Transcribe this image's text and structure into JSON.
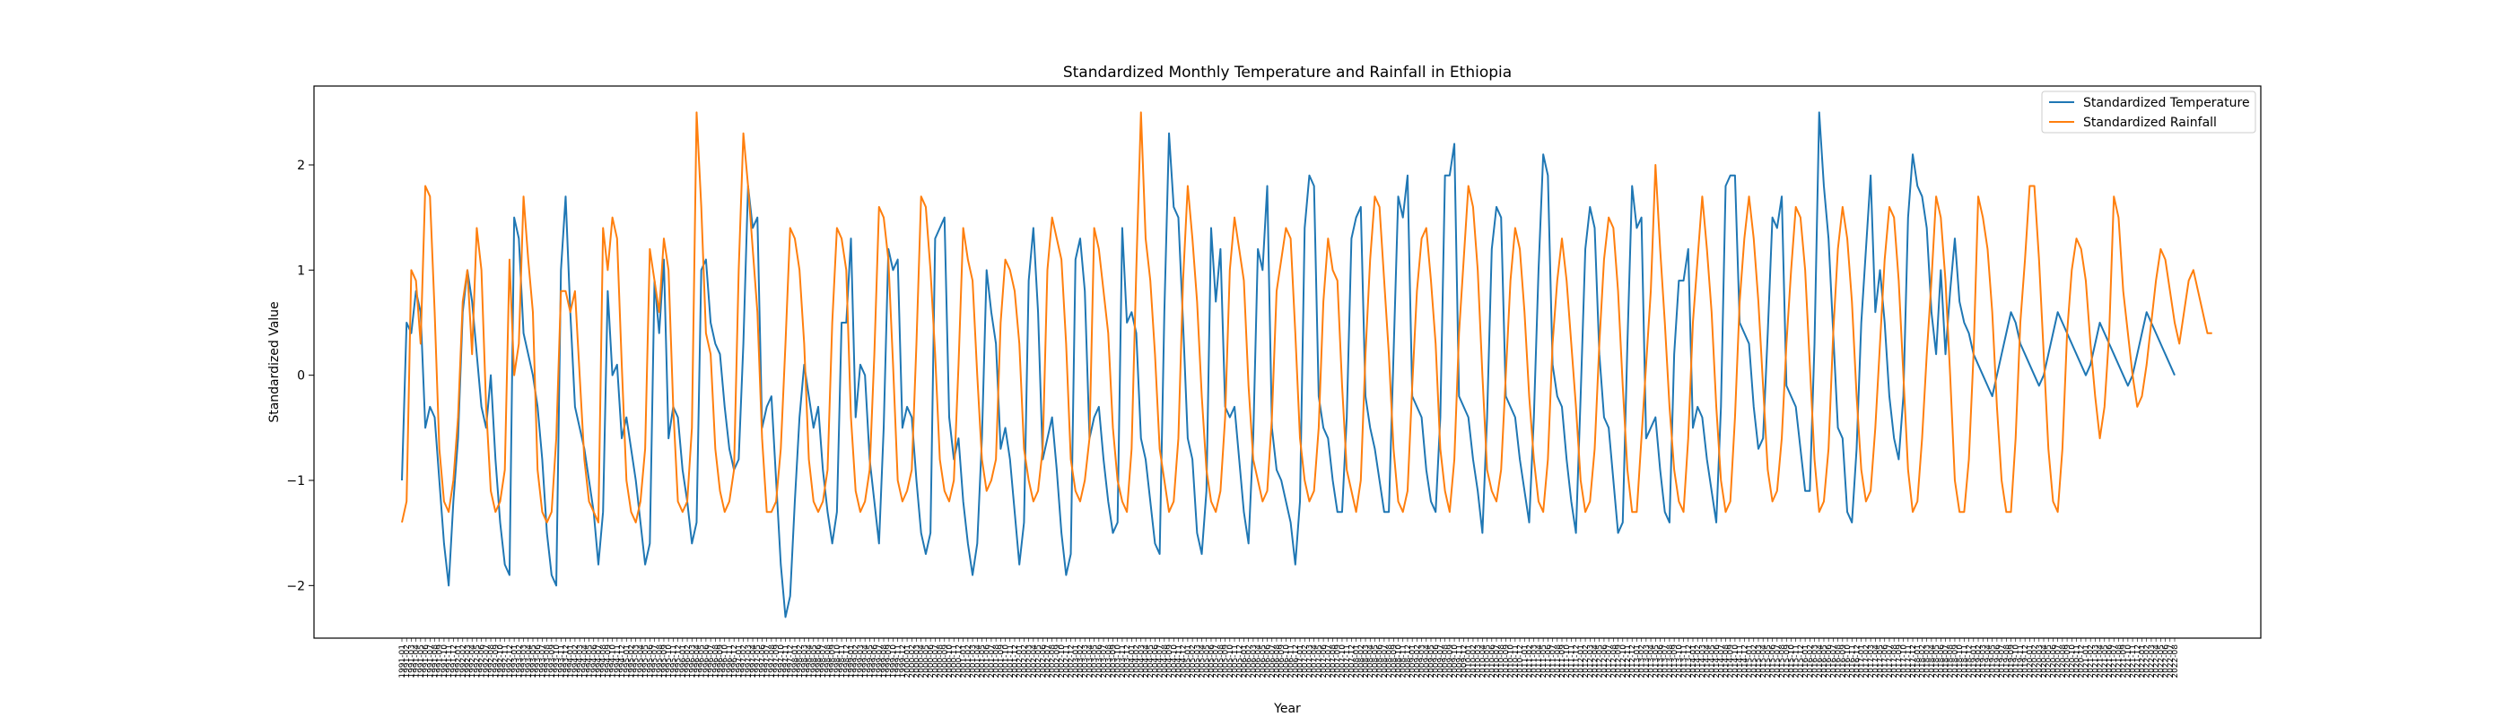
{
  "chart_data": {
    "type": "line",
    "title": "Standardized Monthly Temperature and Rainfall in Ethiopia",
    "xlabel": "Year",
    "ylabel": "Standardized Value",
    "ylim": [
      -2.5,
      2.75
    ],
    "yticks": [
      -2,
      -1,
      0,
      1,
      2
    ],
    "ytick_labels": [
      "−2",
      "−1",
      "0",
      "1",
      "2"
    ],
    "grid": false,
    "legend_position": "top-right",
    "x_start": "1991-01",
    "x_end": "2022-12",
    "n_months": 384,
    "series": [
      {
        "name": "Standardized Temperature",
        "color": "#1f77b4",
        "values": [
          -1.0,
          0.5,
          0.4,
          0.8,
          0.6,
          -0.5,
          -0.3,
          -0.4,
          -1.0,
          -1.6,
          -2.0,
          -1.2,
          -0.6,
          0.6,
          1.0,
          0.7,
          0.2,
          -0.3,
          -0.5,
          0.0,
          -0.8,
          -1.4,
          -1.8,
          -1.9,
          1.5,
          1.3,
          0.4,
          0.2,
          0.0,
          -0.3,
          -0.8,
          -1.5,
          -1.9,
          -2.0,
          1.0,
          1.7,
          0.6,
          -0.3,
          -0.5,
          -0.7,
          -1.0,
          -1.3,
          -1.8,
          -1.3,
          0.8,
          0.0,
          0.1,
          -0.6,
          -0.4,
          -0.7,
          -1.0,
          -1.4,
          -1.8,
          -1.6,
          0.9,
          0.4,
          1.1,
          -0.6,
          -0.3,
          -0.4,
          -0.9,
          -1.2,
          -1.6,
          -1.4,
          1.0,
          1.1,
          0.5,
          0.3,
          0.2,
          -0.3,
          -0.7,
          -0.9,
          -0.8,
          0.3,
          1.8,
          1.4,
          1.5,
          -0.5,
          -0.3,
          -0.2,
          -1.0,
          -1.8,
          -2.3,
          -2.1,
          -1.2,
          -0.4,
          0.1,
          -0.2,
          -0.5,
          -0.3,
          -0.9,
          -1.3,
          -1.6,
          -1.3,
          0.5,
          0.5,
          1.3,
          -0.4,
          0.1,
          0.0,
          -0.8,
          -1.2,
          -1.6,
          -0.5,
          1.2,
          1.0,
          1.1,
          -0.5,
          -0.3,
          -0.4,
          -1.0,
          -1.5,
          -1.7,
          -1.5,
          1.3,
          1.4,
          1.5,
          -0.4,
          -0.8,
          -0.6,
          -1.2,
          -1.6,
          -1.9,
          -1.6,
          -0.6,
          1.0,
          0.6,
          0.3,
          -0.7,
          -0.5,
          -0.8,
          -1.3,
          -1.8,
          -1.4,
          0.9,
          1.4,
          0.6,
          -0.8,
          -0.6,
          -0.4,
          -0.9,
          -1.5,
          -1.9,
          -1.7,
          1.1,
          1.3,
          0.8,
          -0.6,
          -0.4,
          -0.3,
          -0.8,
          -1.2,
          -1.5,
          -1.4,
          1.4,
          0.5,
          0.6,
          0.4,
          -0.6,
          -0.8,
          -1.2,
          -1.6,
          -1.7,
          0.6,
          2.3,
          1.6,
          1.5,
          0.5,
          -0.6,
          -0.8,
          -1.5,
          -1.7,
          -1.1,
          1.4,
          0.7,
          1.2,
          -0.3,
          -0.4,
          -0.3,
          -0.8,
          -1.3,
          -1.6,
          -0.6,
          1.2,
          1.0,
          1.8,
          -0.5,
          -0.9,
          -1.0,
          -1.2,
          -1.4,
          -1.8,
          -1.2,
          1.4,
          1.9,
          1.8,
          -0.2,
          -0.5,
          -0.6,
          -1.0,
          -1.3,
          -1.3,
          -0.4,
          1.3,
          1.5,
          1.6,
          -0.2,
          -0.5,
          -0.7,
          -1.0,
          -1.3,
          -1.3,
          0.2,
          1.7,
          1.5,
          1.9,
          -0.2,
          -0.3,
          -0.4,
          -0.9,
          -1.2,
          -1.3,
          -0.4,
          1.9,
          1.9,
          2.2,
          -0.2,
          -0.3,
          -0.4,
          -0.8,
          -1.1,
          -1.5,
          -0.4,
          1.2,
          1.6,
          1.5,
          -0.2,
          -0.3,
          -0.4,
          -0.8,
          -1.1,
          -1.4,
          -0.4,
          1.0,
          2.1,
          1.9,
          0.1,
          -0.2,
          -0.3,
          -0.8,
          -1.2,
          -1.5,
          -0.2,
          1.2,
          1.6,
          1.4,
          0.2,
          -0.4,
          -0.5,
          -1.0,
          -1.5,
          -1.4,
          0.3,
          1.8,
          1.4,
          1.5,
          -0.6,
          -0.5,
          -0.4,
          -0.9,
          -1.3,
          -1.4,
          0.2,
          0.9,
          0.9,
          1.2,
          -0.5,
          -0.3,
          -0.4,
          -0.8,
          -1.1,
          -1.4,
          -0.3,
          1.8,
          1.9,
          1.9,
          0.5,
          0.4,
          0.3,
          -0.3,
          -0.7,
          -0.6,
          0.4,
          1.5,
          1.4,
          1.7,
          -0.1,
          -0.2,
          -0.3,
          -0.7,
          -1.1,
          -1.1,
          0.3,
          2.5,
          1.8,
          1.3,
          0.4,
          -0.5,
          -0.6,
          -1.3,
          -1.4,
          -0.7,
          0.5,
          1.2,
          1.9,
          0.6,
          1.0,
          0.5,
          -0.2,
          -0.6,
          -0.8,
          -0.2,
          1.5,
          2.1,
          1.8,
          1.7,
          1.4,
          0.6,
          0.2,
          1.0,
          0.2,
          0.8,
          1.3,
          0.7,
          0.5,
          0.4,
          0.2,
          0.1,
          0.0,
          -0.1,
          -0.2,
          0.0,
          0.2,
          0.4,
          0.6,
          0.5,
          0.3,
          0.2,
          0.1,
          0.0,
          -0.1,
          0.0,
          0.2,
          0.4,
          0.6,
          0.5,
          0.4,
          0.3,
          0.2,
          0.1,
          0.0,
          0.1,
          0.3,
          0.5,
          0.4,
          0.3,
          0.2,
          0.1,
          0.0,
          -0.1,
          0.0,
          0.2,
          0.4,
          0.6,
          0.5,
          0.4,
          0.3,
          0.2,
          0.1,
          0.0
        ]
      },
      {
        "name": "Standardized Rainfall",
        "color": "#ff7f0e",
        "values": [
          -1.4,
          -1.2,
          1.0,
          0.9,
          0.3,
          1.8,
          1.7,
          0.6,
          -0.7,
          -1.2,
          -1.3,
          -1.0,
          -0.4,
          0.7,
          1.0,
          0.2,
          1.4,
          1.0,
          -0.3,
          -1.1,
          -1.3,
          -1.2,
          -0.9,
          1.1,
          0.0,
          0.3,
          1.7,
          1.1,
          0.6,
          -0.9,
          -1.3,
          -1.4,
          -1.3,
          -0.6,
          0.8,
          0.8,
          0.6,
          0.8,
          0.0,
          -0.8,
          -1.2,
          -1.3,
          -1.4,
          1.4,
          1.0,
          1.5,
          1.3,
          0.1,
          -1.0,
          -1.3,
          -1.4,
          -1.2,
          -0.7,
          1.2,
          0.9,
          0.6,
          1.3,
          1.0,
          -0.3,
          -1.2,
          -1.3,
          -1.2,
          -0.5,
          2.5,
          1.6,
          0.4,
          0.2,
          -0.7,
          -1.1,
          -1.3,
          -1.2,
          -0.9,
          1.0,
          2.3,
          1.8,
          1.2,
          0.6,
          -0.6,
          -1.3,
          -1.3,
          -1.2,
          -0.7,
          0.3,
          1.4,
          1.3,
          1.0,
          0.3,
          -0.8,
          -1.2,
          -1.3,
          -1.2,
          -0.9,
          0.5,
          1.4,
          1.3,
          1.0,
          -0.4,
          -1.1,
          -1.3,
          -1.2,
          -0.9,
          0.2,
          1.6,
          1.5,
          1.1,
          0.1,
          -1.0,
          -1.2,
          -1.1,
          -0.9,
          0.3,
          1.7,
          1.6,
          1.0,
          0.2,
          -0.8,
          -1.1,
          -1.2,
          -1.0,
          0.1,
          1.4,
          1.1,
          0.9,
          0.0,
          -0.8,
          -1.1,
          -1.0,
          -0.8,
          0.5,
          1.1,
          1.0,
          0.8,
          0.3,
          -0.7,
          -1.0,
          -1.2,
          -1.1,
          -0.7,
          1.0,
          1.5,
          1.3,
          1.1,
          0.3,
          -0.8,
          -1.1,
          -1.2,
          -1.0,
          -0.6,
          1.4,
          1.2,
          0.8,
          0.4,
          -0.5,
          -1.0,
          -1.2,
          -1.3,
          -0.7,
          1.0,
          2.5,
          1.3,
          0.9,
          0.2,
          -0.7,
          -1.0,
          -1.3,
          -1.2,
          -0.6,
          0.9,
          1.8,
          1.3,
          0.7,
          -0.2,
          -0.9,
          -1.2,
          -1.3,
          -1.1,
          -0.4,
          1.0,
          1.5,
          1.2,
          0.9,
          -0.1,
          -0.8,
          -1.0,
          -1.2,
          -1.1,
          -0.4,
          0.8,
          1.1,
          1.4,
          1.3,
          0.4,
          -0.6,
          -1.0,
          -1.2,
          -1.1,
          -0.5,
          0.7,
          1.3,
          1.0,
          0.9,
          -0.1,
          -0.9,
          -1.1,
          -1.3,
          -1.0,
          0.2,
          1.1,
          1.7,
          1.6,
          0.9,
          0.2,
          -0.7,
          -1.2,
          -1.3,
          -1.1,
          -0.1,
          0.8,
          1.3,
          1.4,
          0.9,
          0.3,
          -0.7,
          -1.1,
          -1.3,
          -0.8,
          0.4,
          1.1,
          1.8,
          1.6,
          1.0,
          0.0,
          -0.9,
          -1.1,
          -1.2,
          -0.9,
          0.0,
          0.9,
          1.4,
          1.2,
          0.6,
          -0.2,
          -0.8,
          -1.2,
          -1.3,
          -0.8,
          0.3,
          0.9,
          1.3,
          0.9,
          0.3,
          -0.3,
          -1.0,
          -1.3,
          -1.2,
          -0.7,
          0.3,
          1.1,
          1.5,
          1.4,
          0.8,
          -0.1,
          -0.9,
          -1.3,
          -1.3,
          -0.6,
          0.1,
          0.8,
          2.0,
          1.2,
          0.5,
          -0.3,
          -0.9,
          -1.2,
          -1.3,
          -0.6,
          0.5,
          1.1,
          1.7,
          1.2,
          0.6,
          -0.3,
          -1.0,
          -1.3,
          -1.2,
          -0.4,
          0.7,
          1.3,
          1.7,
          1.3,
          0.7,
          -0.1,
          -0.9,
          -1.2,
          -1.1,
          -0.6,
          0.3,
          1.0,
          1.6,
          1.5,
          1.0,
          0.1,
          -0.8,
          -1.3,
          -1.2,
          -0.7,
          0.4,
          1.2,
          1.6,
          1.3,
          0.7,
          -0.2,
          -0.9,
          -1.2,
          -1.1,
          -0.5,
          0.3,
          1.1,
          1.6,
          1.5,
          0.9,
          0.0,
          -0.9,
          -1.3,
          -1.2,
          -0.6,
          0.2,
          0.9,
          1.7,
          1.5,
          0.9,
          0.0,
          -1.0,
          -1.3,
          -1.3,
          -0.8,
          0.2,
          1.7,
          1.5,
          1.2,
          0.6,
          -0.3,
          -1.0,
          -1.3,
          -1.3,
          -0.6,
          0.5,
          1.1,
          1.8,
          1.8,
          1.1,
          0.2,
          -0.7,
          -1.2,
          -1.3,
          -0.7,
          0.4,
          1.0,
          1.3,
          1.2,
          0.9,
          0.3,
          -0.2,
          -0.6,
          -0.3,
          0.4,
          1.7,
          1.5,
          0.8,
          0.4,
          0.0,
          -0.3,
          -0.2,
          0.1,
          0.5,
          0.9,
          1.2,
          1.1,
          0.8,
          0.5,
          0.3,
          0.6,
          0.9,
          1.0,
          0.8,
          0.6,
          0.4,
          0.4
        ]
      }
    ]
  }
}
